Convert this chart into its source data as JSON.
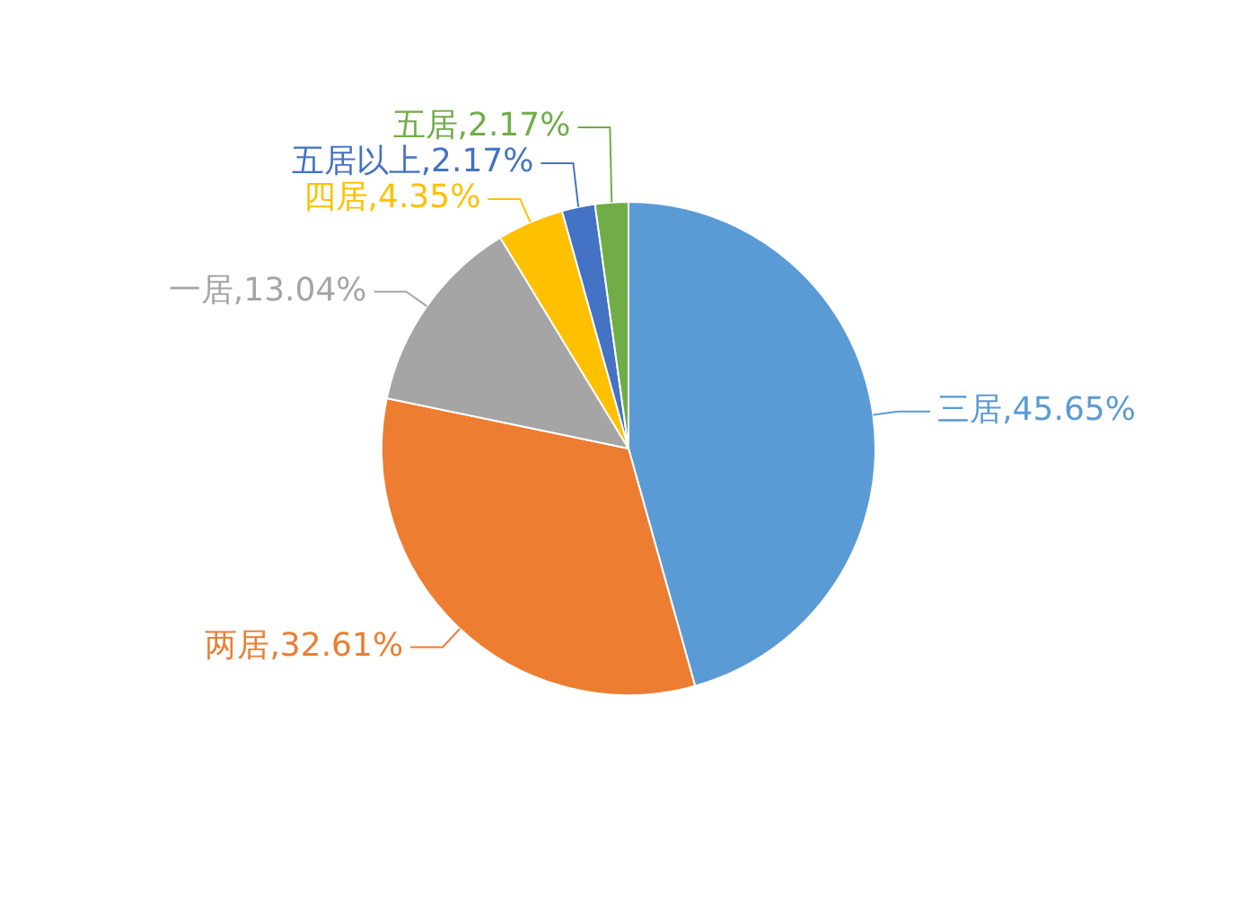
{
  "chart_data": {
    "type": "pie",
    "categories": [
      "三居",
      "两居",
      "一居",
      "四居",
      "五居以上",
      "五居"
    ],
    "values": [
      45.65,
      32.61,
      13.04,
      4.35,
      2.17,
      2.17
    ],
    "colors": [
      "#5b9bd5",
      "#ed7d31",
      "#a5a5a5",
      "#ffc000",
      "#4472c4",
      "#70ad47"
    ],
    "value_labels": [
      "45.65%",
      "32.61%",
      "13.04%",
      "4.35%",
      "2.17%",
      "2.17%"
    ],
    "legend": false
  }
}
